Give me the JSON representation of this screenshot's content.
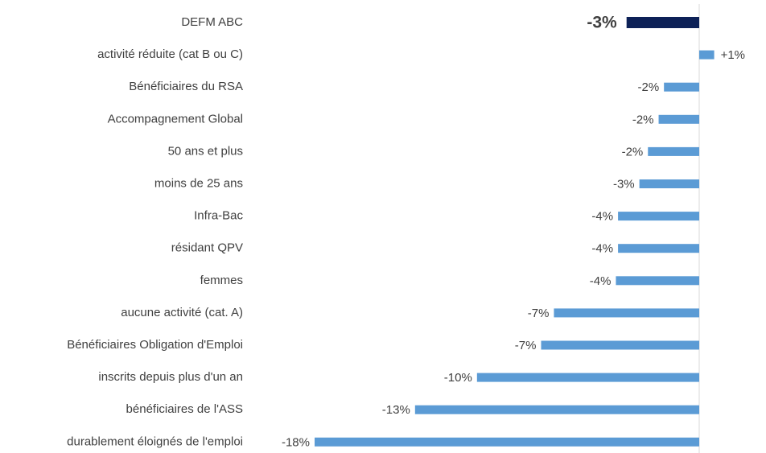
{
  "chart_data": {
    "type": "bar",
    "orientation": "horizontal",
    "categories": [
      "DEFM ABC",
      "activité réduite (cat B ou C)",
      "Bénéficiaires du RSA",
      "Accompagnement Global",
      "50 ans et plus",
      "moins de 25 ans",
      "Infra-Bac",
      "résidant QPV",
      "femmes",
      "aucune activité (cat. A)",
      "Bénéficiaires Obligation d'Emploi",
      "inscrits depuis plus d'un an",
      "bénéficiaires de l'ASS",
      "durablement éloignés de l'emploi"
    ],
    "values": [
      -3.4,
      0.7,
      -1.65,
      -1.9,
      -2.4,
      -2.8,
      -3.8,
      -3.8,
      -3.9,
      -6.8,
      -7.4,
      -10.4,
      -13.3,
      -18.0
    ],
    "value_labels": [
      "-3%",
      "+1%",
      "-2%",
      "-2%",
      "-2%",
      "-3%",
      "-4%",
      "-4%",
      "-4%",
      "-7%",
      "-7%",
      "-10%",
      "-13%",
      "-18%"
    ],
    "color": "#5b9bd5",
    "highlight_color": "#0d2157",
    "xlim": [
      -18,
      0
    ]
  }
}
